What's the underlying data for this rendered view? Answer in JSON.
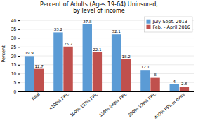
{
  "chart_data": {
    "type": "bar",
    "title": "Percent of Adults (Ages 19-64) Uninsured,\nby level of income",
    "categories": [
      "Total",
      "<100% FPL",
      "100%-137% FPL",
      "138%-249% FPL",
      "250%-399% FPL",
      "400% FPL or more"
    ],
    "series": [
      {
        "name": "July-Sept. 2013",
        "color": "#5B9BD5",
        "values": [
          19.9,
          33.2,
          37.8,
          32.1,
          12.1,
          4.0
        ]
      },
      {
        "name": "Feb. - April 2016",
        "color": "#C0504D",
        "values": [
          12.7,
          25.2,
          22.1,
          18.2,
          8.0,
          2.6
        ]
      }
    ],
    "ylabel": "Percent",
    "ylim": [
      0,
      42
    ],
    "yticks": [
      0,
      5,
      10,
      15,
      20,
      25,
      30,
      35,
      40
    ],
    "grid": true,
    "legend": "upper right",
    "data_labels": true
  }
}
